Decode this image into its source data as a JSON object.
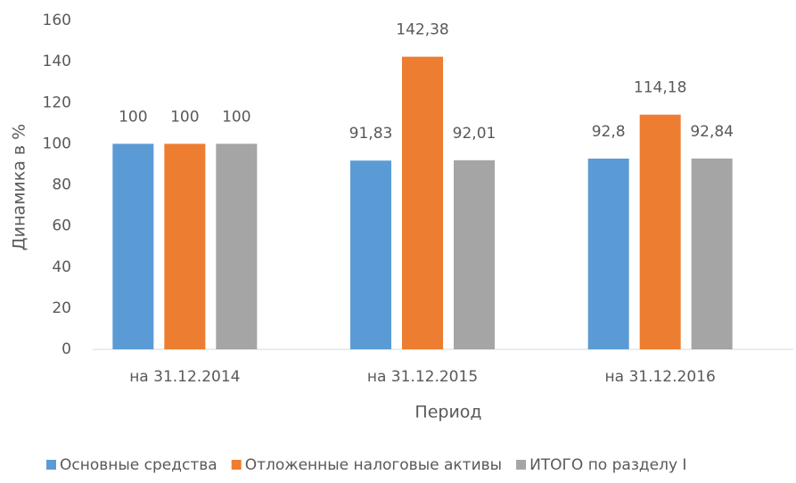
{
  "chart_data": {
    "type": "bar",
    "y_label": "Динамика в %",
    "x_label": "Период",
    "categories": [
      "на 31.12.2014",
      "на 31.12.2015",
      "на 31.12.2016"
    ],
    "series": [
      {
        "name": "Основные средства",
        "color": "#5b9bd5",
        "values": [
          100,
          91.83,
          92.8
        ],
        "value_labels": [
          "100",
          "91,83",
          "92,8"
        ]
      },
      {
        "name": "Отложенные налоговые активы",
        "color": "#ed7d31",
        "values": [
          100,
          142.38,
          114.18
        ],
        "value_labels": [
          "100",
          "142,38",
          "114,18"
        ]
      },
      {
        "name": "ИТОГО по разделу I",
        "color": "#a5a5a5",
        "values": [
          100,
          92.01,
          92.84
        ],
        "value_labels": [
          "100",
          "92,01",
          "92,84"
        ]
      }
    ],
    "ylim": [
      0,
      160
    ],
    "yticks": [
      0,
      20,
      40,
      60,
      80,
      100,
      120,
      140,
      160
    ],
    "grid": false,
    "legend": "bottom"
  }
}
